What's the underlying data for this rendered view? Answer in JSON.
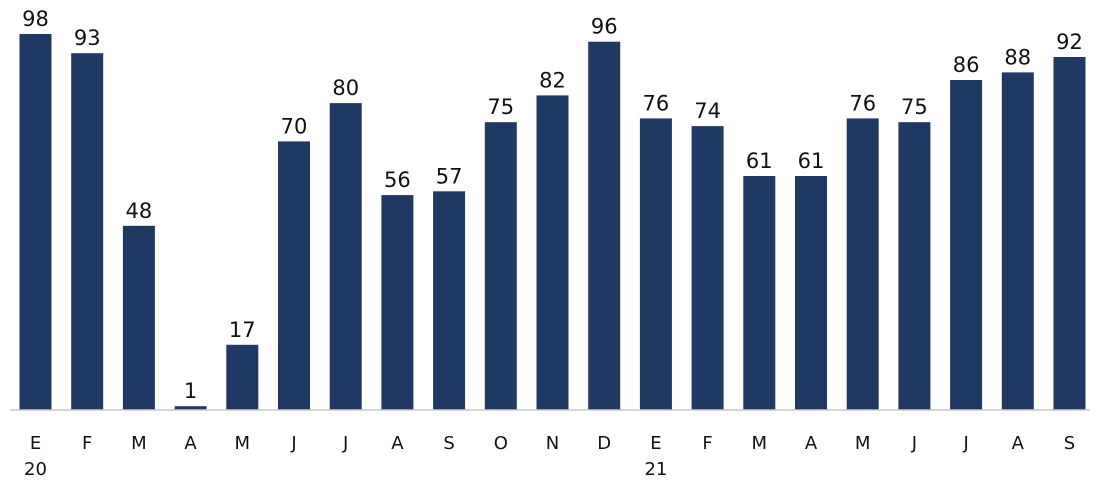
{
  "chart_data": {
    "type": "bar",
    "categories": [
      "E",
      "F",
      "M",
      "A",
      "M",
      "J",
      "J",
      "A",
      "S",
      "O",
      "N",
      "D",
      "E",
      "F",
      "M",
      "A",
      "M",
      "J",
      "J",
      "A",
      "S"
    ],
    "year_labels": [
      "20",
      "",
      "",
      "",
      "",
      "",
      "",
      "",
      "",
      "",
      "",
      "",
      "21",
      "",
      "",
      "",
      "",
      "",
      "",
      "",
      ""
    ],
    "values": [
      98,
      93,
      48,
      1,
      17,
      70,
      80,
      56,
      57,
      75,
      82,
      96,
      76,
      74,
      61,
      61,
      76,
      75,
      86,
      88,
      92
    ],
    "title": "",
    "xlabel": "",
    "ylabel": "",
    "ylim": [
      0,
      100
    ],
    "grid": false,
    "bar_color": "#1f3864"
  }
}
